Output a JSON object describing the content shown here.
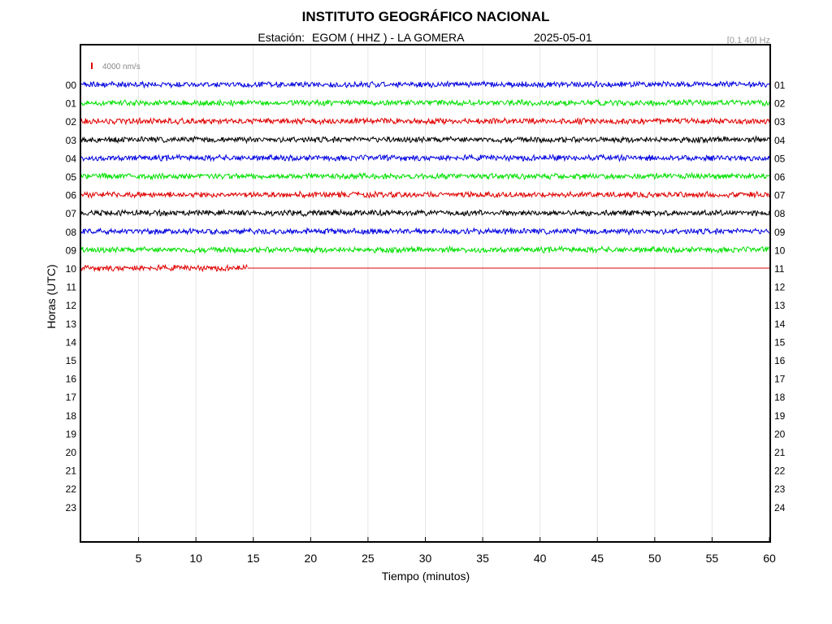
{
  "chart_data": {
    "type": "line",
    "title": "INSTITUTO GEOGRÁFICO NACIONAL",
    "station_label": "Estación:",
    "station": "EGOM ( HHZ ) - LA GOMERA",
    "date": "2025-05-01",
    "filter": "[0.1 40] Hz",
    "scale_label": "4000 nm/s",
    "xlabel": "Tiempo (minutos)",
    "ylabel": "Horas (UTC)",
    "xlim": [
      0,
      60
    ],
    "x_ticks": [
      5,
      10,
      15,
      20,
      25,
      30,
      35,
      40,
      45,
      50,
      55,
      60
    ],
    "left_hours": [
      "00",
      "01",
      "02",
      "03",
      "04",
      "05",
      "06",
      "07",
      "08",
      "09",
      "10",
      "11",
      "12",
      "13",
      "14",
      "15",
      "16",
      "17",
      "18",
      "19",
      "20",
      "21",
      "22",
      "23"
    ],
    "right_hours": [
      "01",
      "02",
      "03",
      "04",
      "05",
      "06",
      "07",
      "08",
      "09",
      "10",
      "11",
      "12",
      "13",
      "14",
      "15",
      "16",
      "17",
      "18",
      "19",
      "20",
      "21",
      "22",
      "23",
      "24"
    ],
    "grid": "vertical",
    "trace_colors": [
      "#0000e0",
      "#00e000",
      "#e00000",
      "#000000"
    ],
    "traces": [
      {
        "hour": "00",
        "end_minute": 60
      },
      {
        "hour": "01",
        "end_minute": 60
      },
      {
        "hour": "02",
        "end_minute": 60
      },
      {
        "hour": "03",
        "end_minute": 60
      },
      {
        "hour": "04",
        "end_minute": 60
      },
      {
        "hour": "05",
        "end_minute": 60
      },
      {
        "hour": "06",
        "end_minute": 60
      },
      {
        "hour": "07",
        "end_minute": 60
      },
      {
        "hour": "08",
        "end_minute": 60
      },
      {
        "hour": "09",
        "end_minute": 60
      },
      {
        "hour": "10",
        "end_minute": 14.5
      }
    ]
  }
}
